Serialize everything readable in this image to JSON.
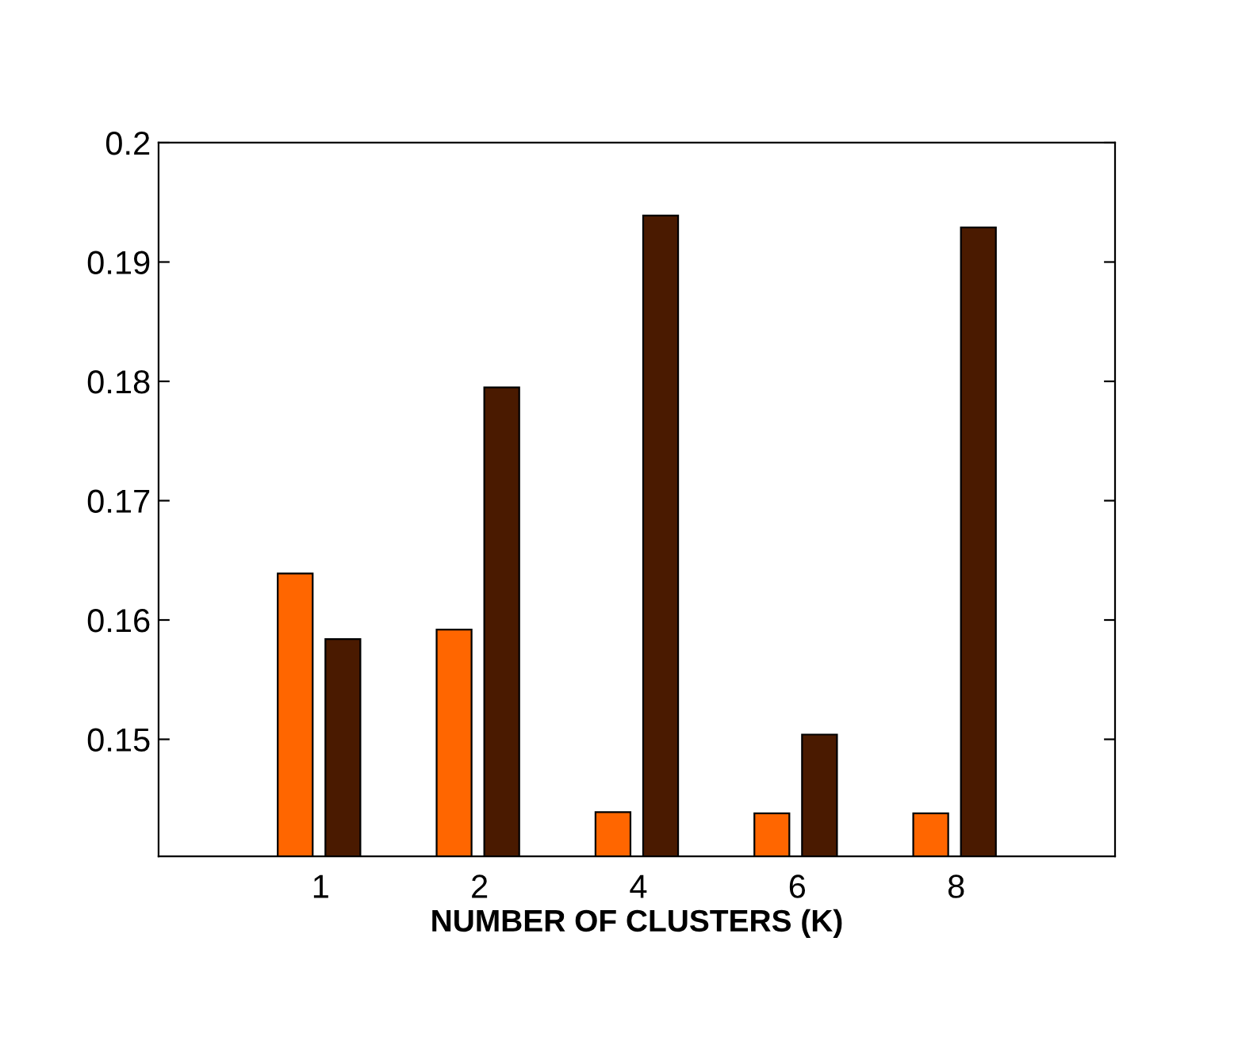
{
  "chart_data": {
    "type": "bar",
    "xlabel": "NUMBER OF CLUSTERS (K)",
    "categories": [
      "1",
      "2",
      "4",
      "6",
      "8"
    ],
    "series": [
      {
        "color": "#ff6600",
        "values": [
          0.1639,
          0.1592,
          0.1439,
          0.1438,
          0.1438
        ]
      },
      {
        "color": "#4a1a00",
        "values": [
          0.1584,
          0.1795,
          0.1939,
          0.1504,
          0.1929
        ]
      }
    ],
    "ylim": [
      0.1402,
      0.2
    ],
    "yticks": [
      0.15,
      0.16,
      0.17,
      0.18,
      0.19,
      0.2
    ],
    "grid": false,
    "legend": false
  }
}
